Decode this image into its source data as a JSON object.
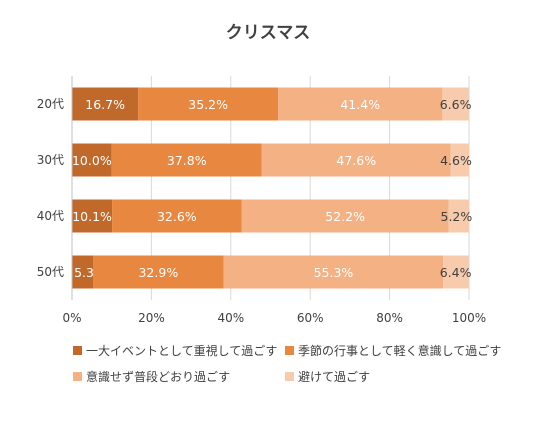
{
  "chart_data": {
    "type": "bar",
    "orientation": "horizontal",
    "stacked": true,
    "percent": true,
    "title": "クリスマス",
    "categories": [
      "20代",
      "30代",
      "40代",
      "50代"
    ],
    "series": [
      {
        "name": "一大イベントとして重視して過ごす",
        "color": "#c0692a",
        "values": [
          16.7,
          10.0,
          10.1,
          5.3
        ],
        "labels": [
          "16.7%",
          "10.0%",
          "10.1%",
          "5.3%"
        ]
      },
      {
        "name": "季節の行事として軽く意識して過ごす",
        "color": "#e8873f",
        "values": [
          35.2,
          37.8,
          32.6,
          32.9
        ],
        "labels": [
          "35.2%",
          "37.8%",
          "32.6%",
          "32.9%"
        ]
      },
      {
        "name": "意識せず普段どおり過ごす",
        "color": "#f4b183",
        "values": [
          41.4,
          47.6,
          52.2,
          55.3
        ],
        "labels": [
          "41.4%",
          "47.6%",
          "52.2%",
          "55.3%"
        ]
      },
      {
        "name": "避けて過ごす",
        "color": "#f8cbad",
        "values": [
          6.6,
          4.6,
          5.2,
          6.4
        ],
        "labels": [
          "6.6%",
          "4.6%",
          "5.2%",
          "6.4%"
        ]
      }
    ],
    "x_ticks": [
      "0%",
      "20%",
      "40%",
      "60%",
      "80%",
      "100%"
    ],
    "xlim": [
      0,
      100
    ],
    "grid": true,
    "legend_position": "bottom"
  }
}
